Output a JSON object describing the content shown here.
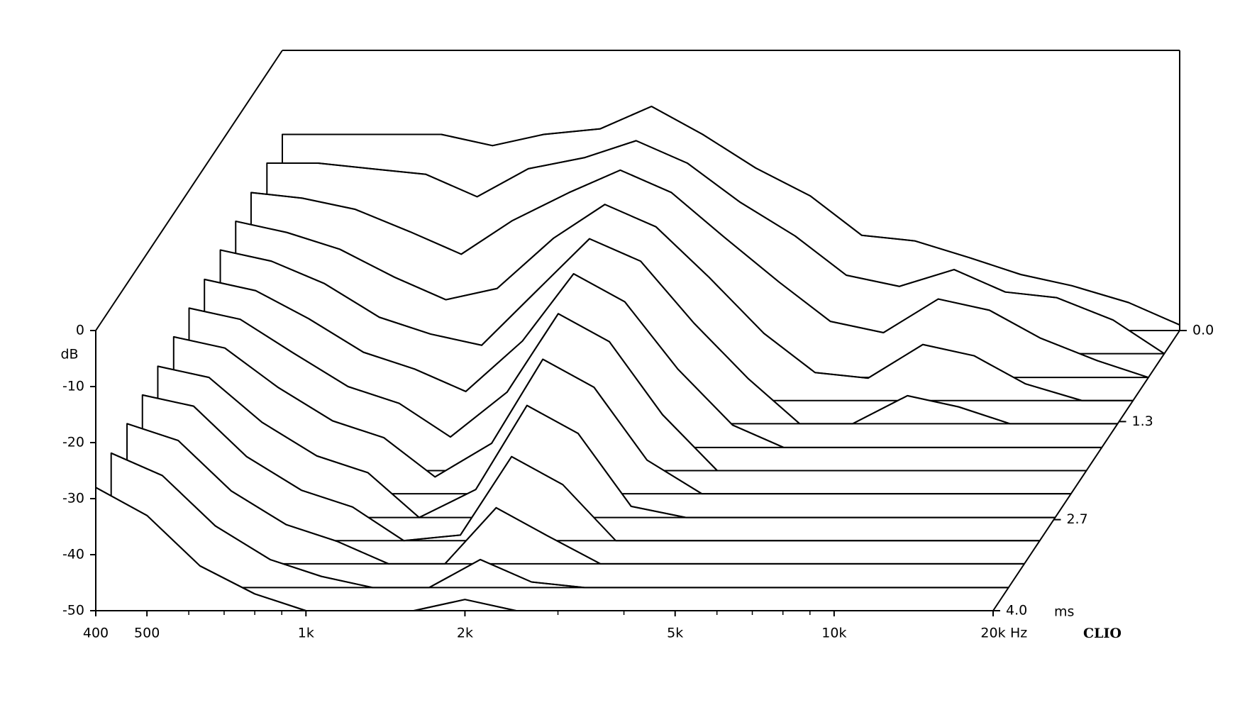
{
  "chart_data": {
    "type": "waterfall",
    "ylabel": "dB",
    "xlabel": "Hz",
    "zlabel": "ms",
    "brand": "CLIO",
    "log_x": true,
    "color": "#000000",
    "xlim": [
      400,
      20000
    ],
    "xticks": [
      400,
      500,
      {
        "value": 1000,
        "label": "1k"
      },
      {
        "value": 2000,
        "label": "2k"
      },
      {
        "value": 5000,
        "label": "5k"
      },
      {
        "value": 10000,
        "label": "10k"
      },
      {
        "value": 20000,
        "label": "20k"
      }
    ],
    "xminorticks": [
      600,
      700,
      800,
      900,
      3000,
      4000,
      6000,
      7000,
      8000,
      9000
    ],
    "ylim": [
      -50,
      0
    ],
    "yticks": [
      0,
      -10,
      -20,
      -30,
      -40,
      -50
    ],
    "zlim": [
      0,
      4
    ],
    "zticks": [
      {
        "value": 0,
        "label": "0.0"
      },
      1.3,
      2.7,
      {
        "value": 4,
        "label": "4.0"
      }
    ],
    "x": [
      400,
      500,
      630,
      800,
      1000,
      1250,
      1600,
      2000,
      2500,
      3150,
      4000,
      5000,
      6300,
      8000,
      10000,
      12500,
      16000,
      20000
    ],
    "series": [
      {
        "time": 0,
        "values": [
          -15,
          -15,
          -15,
          -15,
          -17,
          -15,
          -14,
          -10,
          -15,
          -21,
          -26,
          -33,
          -34,
          -37,
          -40,
          -42,
          -45,
          -49
        ]
      },
      {
        "time": 0.33,
        "values": [
          -16,
          -16,
          -17,
          -18,
          -22,
          -17,
          -15,
          -12,
          -16,
          -23,
          -29,
          -36,
          -38,
          -35,
          -39,
          -40,
          -44,
          -50
        ]
      },
      {
        "time": 0.67,
        "values": [
          -17,
          -18,
          -20,
          -24,
          -28,
          -22,
          -17,
          -13,
          -17,
          -25,
          -33,
          -40,
          -42,
          -36,
          -38,
          -43,
          -47,
          -50
        ]
      },
      {
        "time": 1.0,
        "values": [
          -18,
          -20,
          -23,
          -28,
          -32,
          -30,
          -21,
          -15,
          -19,
          -28,
          -38,
          -45,
          -46,
          -40,
          -42,
          -47,
          -50,
          -50
        ]
      },
      {
        "time": 1.33,
        "values": [
          -19,
          -21,
          -25,
          -31,
          -34,
          -36,
          -26,
          -17,
          -21,
          -32,
          -42,
          -50,
          -50,
          -45,
          -47,
          -50,
          -50,
          -50
        ]
      },
      {
        "time": 1.67,
        "values": [
          -20,
          -22,
          -27,
          -33,
          -36,
          -40,
          -31,
          -19,
          -24,
          -36,
          -46,
          -50,
          -50,
          -50,
          -50,
          -50,
          -50,
          -50
        ]
      },
      {
        "time": 2.0,
        "values": [
          -21,
          -23,
          -29,
          -35,
          -38,
          -44,
          -36,
          -22,
          -27,
          -40,
          -50,
          -50,
          -50,
          -50,
          -50,
          -50,
          -50,
          -50
        ]
      },
      {
        "time": 2.33,
        "values": [
          -22,
          -24,
          -31,
          -37,
          -40,
          -47,
          -41,
          -26,
          -31,
          -44,
          -50,
          -50,
          -50,
          -50,
          -50,
          -50,
          -50,
          -50
        ]
      },
      {
        "time": 2.67,
        "values": [
          -23,
          -25,
          -33,
          -39,
          -42,
          -50,
          -45,
          -30,
          -35,
          -48,
          -50,
          -50,
          -50,
          -50,
          -50,
          -50,
          -50,
          -50
        ]
      },
      {
        "time": 3.0,
        "values": [
          -24,
          -26,
          -35,
          -41,
          -44,
          -50,
          -49,
          -35,
          -40,
          -50,
          -50,
          -50,
          -50,
          -50,
          -50,
          -50,
          -50,
          -50
        ]
      },
      {
        "time": 3.33,
        "values": [
          -25,
          -28,
          -37,
          -43,
          -46,
          -50,
          -50,
          -40,
          -45,
          -50,
          -50,
          -50,
          -50,
          -50,
          -50,
          -50,
          -50,
          -50
        ]
      },
      {
        "time": 3.67,
        "values": [
          -26,
          -30,
          -39,
          -45,
          -48,
          -50,
          -50,
          -45,
          -49,
          -50,
          -50,
          -50,
          -50,
          -50,
          -50,
          -50,
          -50,
          -50
        ]
      },
      {
        "time": 4.0,
        "values": [
          -28,
          -33,
          -42,
          -47,
          -50,
          -50,
          -50,
          -48,
          -50,
          -50,
          -50,
          -50,
          -50,
          -50,
          -50,
          -50,
          -50,
          -50
        ]
      }
    ]
  }
}
